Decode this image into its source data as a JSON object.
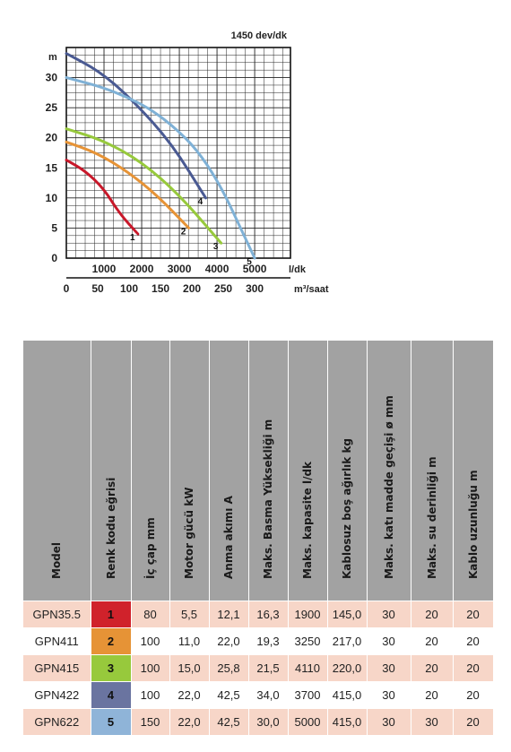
{
  "chart_data": {
    "type": "line",
    "title": "1450 dev/dk",
    "ylabel": "m",
    "ylim": [
      0,
      35
    ],
    "y_ticks": [
      0,
      5,
      10,
      15,
      20,
      25,
      30
    ],
    "x_ticks_flow_l": [
      "1000",
      "2000",
      "3000",
      "4000",
      "5000"
    ],
    "x_unit_flow_l": "l/dk",
    "xlim_flow_l": [
      0,
      5950
    ],
    "x_ticks_flow_m3": [
      "0",
      "50",
      "100",
      "150",
      "200",
      "250",
      "300"
    ],
    "x_unit_flow_m3": "m³/saat",
    "grid": true,
    "series": [
      {
        "label": "1",
        "color": "#c8182a",
        "x": [
          0,
          500,
          1000,
          1400,
          1900
        ],
        "y": [
          16.3,
          14.5,
          11.5,
          7.5,
          4
        ]
      },
      {
        "label": "2",
        "color": "#e69336",
        "x": [
          0,
          800,
          1600,
          2400,
          3250
        ],
        "y": [
          19.3,
          17.5,
          14.5,
          10.5,
          5
        ]
      },
      {
        "label": "3",
        "color": "#97c93c",
        "x": [
          0,
          1000,
          2000,
          3000,
          4110
        ],
        "y": [
          21.5,
          19.5,
          16,
          10.5,
          2.5
        ]
      },
      {
        "label": "4",
        "color": "#4a5a92",
        "x": [
          0,
          900,
          1800,
          2800,
          3700
        ],
        "y": [
          34,
          31,
          26,
          19,
          10
        ]
      },
      {
        "label": "5",
        "color": "#7fb1d6",
        "x": [
          0,
          1200,
          2500,
          3800,
          5000
        ],
        "y": [
          30,
          28,
          24,
          16,
          0
        ]
      }
    ]
  },
  "table": {
    "headers": [
      "Model",
      "Renk kodu eğrisi",
      "İç çap mm",
      "Motor gücü kW",
      "Anma akımı A",
      "Maks. Basma Yüksekliği m",
      "Maks. kapasite l/dk",
      "Kablosuz boş ağırlık kg",
      "Maks. katı madde geçişi ø mm",
      "Maks. su derinliği m",
      "Kablo uzunluğu m"
    ],
    "rows": [
      {
        "model": "GPN35.5",
        "code": "1",
        "code_color": "#d0222b",
        "cells": [
          "80",
          "5,5",
          "12,1",
          "16,3",
          "1900",
          "145,0",
          "30",
          "20",
          "20"
        ]
      },
      {
        "model": "GPN411",
        "code": "2",
        "code_color": "#e69336",
        "cells": [
          "100",
          "11,0",
          "22,0",
          "19,3",
          "3250",
          "217,0",
          "30",
          "20",
          "20"
        ]
      },
      {
        "model": "GPN415",
        "code": "3",
        "code_color": "#97c93c",
        "cells": [
          "100",
          "15,0",
          "25,8",
          "21,5",
          "4110",
          "220,0",
          "30",
          "20",
          "20"
        ]
      },
      {
        "model": "GPN422",
        "code": "4",
        "code_color": "#6a74a0",
        "cells": [
          "100",
          "22,0",
          "42,5",
          "34,0",
          "3700",
          "415,0",
          "30",
          "20",
          "20"
        ]
      },
      {
        "model": "GPN622",
        "code": "5",
        "code_color": "#8fb4d8",
        "cells": [
          "150",
          "22,0",
          "42,5",
          "30,0",
          "5000",
          "415,0",
          "30",
          "30",
          "20"
        ]
      }
    ]
  }
}
